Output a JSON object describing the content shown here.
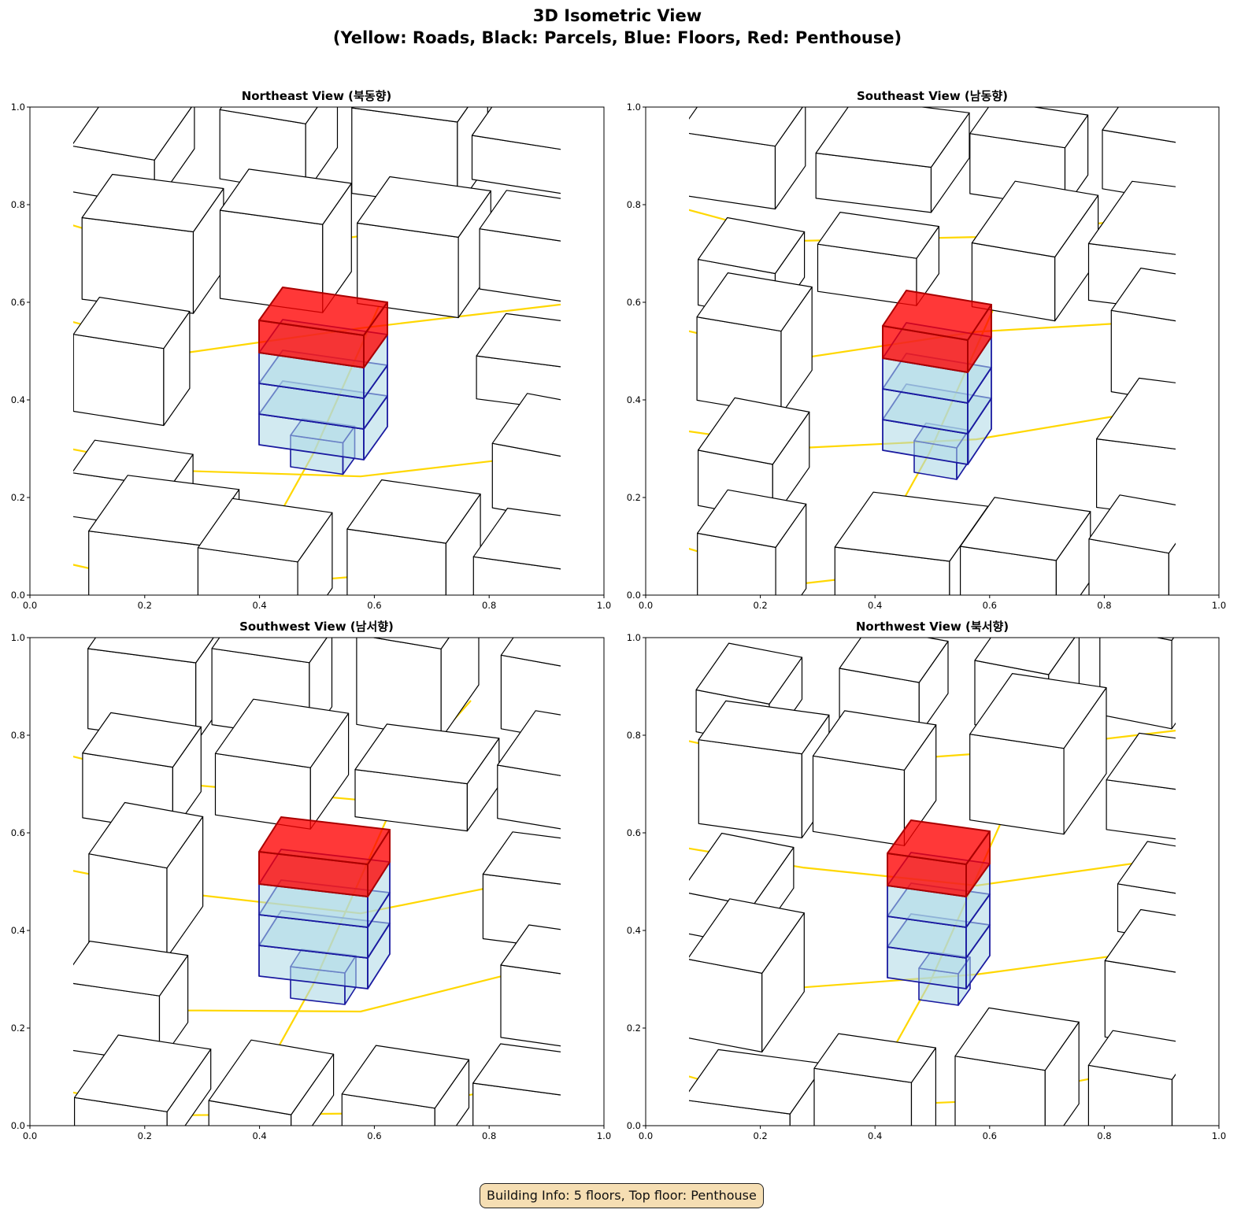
{
  "title_line1": "3D Isometric View",
  "title_line2": "(Yellow: Roads, Black: Parcels, Blue: Floors, Red: Penthouse)",
  "panels": [
    {
      "title": "Northeast View (북동향)"
    },
    {
      "title": "Southeast View (남동향)"
    },
    {
      "title": "Southwest View (남서향)"
    },
    {
      "title": "Northwest View (북서향)"
    }
  ],
  "ticks": [
    "0.0",
    "0.2",
    "0.4",
    "0.6",
    "0.8",
    "1.0"
  ],
  "axis_range": [
    0,
    1
  ],
  "info_box": "Building Info: 5 floors, Top floor: Penthouse",
  "colors": {
    "roads": "#ffd700",
    "parcels": "#000000",
    "floors": "#add8e6",
    "floor_edges": "#1a1aa0",
    "penthouse": "#ff0000",
    "info_bg": "#f5deb3"
  }
}
